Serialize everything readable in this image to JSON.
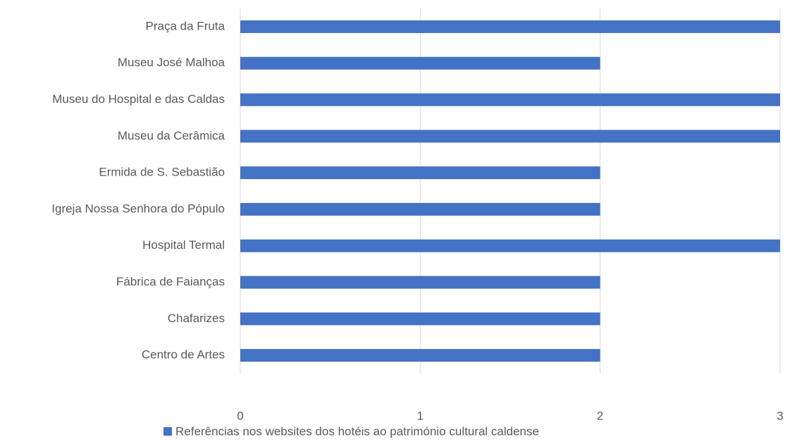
{
  "chart_data": {
    "type": "hbar",
    "categories": [
      "Praça da Fruta",
      "Museu José Malhoa",
      "Museu do Hospital e das Caldas",
      "Museu da Cerâmica",
      "Ermida de S. Sebastião",
      "Igreja Nossa Senhora do Pópulo",
      "Hospital Termal",
      "Fábrica de Faianças",
      "Chafarizes",
      "Centro de Artes"
    ],
    "series": [
      {
        "name": "Referências nos websites dos hotéis ao património cultural caldense",
        "color": "#4472c4",
        "values": [
          3,
          2,
          3,
          3,
          2,
          2,
          3,
          2,
          2,
          2
        ]
      }
    ],
    "xlim": [
      0,
      3
    ],
    "xticks": [
      0,
      1,
      2,
      3
    ],
    "grid": true,
    "legend": "bottom"
  }
}
